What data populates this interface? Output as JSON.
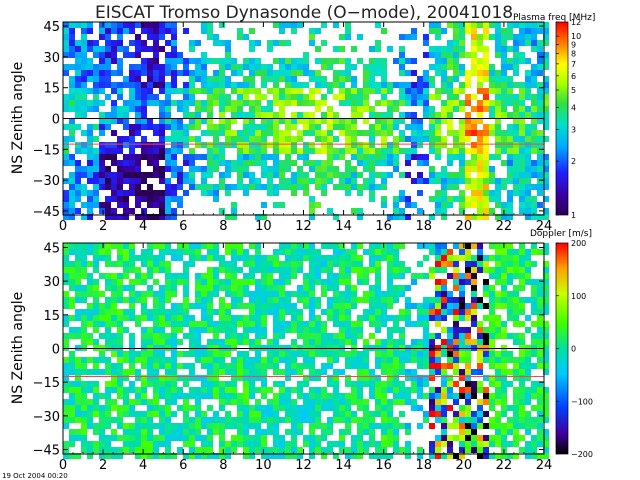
{
  "title": "EISCAT Tromso Dynasonde (O−mode),  20041018",
  "timestamp": "19 Oct 2004 00:20",
  "colors": {
    "frame": "#000000",
    "reference_line": "#ff4444",
    "zero_line": "#000000",
    "background": "#ffffff"
  },
  "chart_data": [
    {
      "type": "heatmap",
      "title": "",
      "xlabel": "",
      "ylabel": "NS Zenith angle",
      "xlim": [
        0,
        24
      ],
      "ylim": [
        -47,
        47
      ],
      "x_ticks": [
        "0",
        "2",
        "4",
        "6",
        "8",
        "10",
        "12",
        "14",
        "16",
        "18",
        "20",
        "22",
        "24"
      ],
      "y_ticks": [
        "45",
        "30",
        "15",
        "0",
        "−15",
        "−30",
        "−45"
      ],
      "x_tick_values": [
        0,
        2,
        4,
        6,
        8,
        10,
        12,
        14,
        16,
        18,
        20,
        22,
        24
      ],
      "y_tick_values": [
        45,
        30,
        15,
        0,
        -15,
        -30,
        -45
      ],
      "reference_lines": [
        {
          "y": 0,
          "color": "#000000"
        },
        {
          "y": -12.5,
          "color": "#ff4444"
        }
      ],
      "colorbar": {
        "label": "Plasma freq [MHz]",
        "scale": "log",
        "range": [
          1,
          12
        ],
        "tick_labels": [
          "12",
          "10",
          "9",
          "8",
          "7",
          "6",
          "5",
          "4",
          "3",
          "2",
          "1"
        ],
        "tick_values": [
          12,
          10,
          9,
          8,
          7,
          6,
          5,
          4,
          3,
          2,
          1
        ]
      },
      "values_description": "scattered echoes; high plasma frequencies near 20 h and 13 h around zero zenith angle",
      "x_bins_hours": [
        0,
        1,
        2,
        3,
        4,
        5,
        6,
        7,
        8,
        9,
        10,
        11,
        12,
        13,
        14,
        15,
        16,
        17,
        18,
        19,
        20,
        21,
        22,
        23
      ],
      "typical_value": [
        2.8,
        2.6,
        2.2,
        2.0,
        1.8,
        2.4,
        3.3,
        3.6,
        3.8,
        3.9,
        4.0,
        4.1,
        4.3,
        4.3,
        4.0,
        3.8,
        3.4,
        2.3,
        3.8,
        4.3,
        7.5,
        4.0,
        3.5,
        3.4
      ]
    },
    {
      "type": "heatmap",
      "title": "",
      "xlabel": "",
      "ylabel": "NS Zenith angle",
      "xlim": [
        0,
        24
      ],
      "ylim": [
        -47,
        47
      ],
      "x_ticks": [
        "0",
        "2",
        "4",
        "6",
        "8",
        "10",
        "12",
        "14",
        "16",
        "18",
        "20",
        "22",
        "24"
      ],
      "y_ticks": [
        "45",
        "30",
        "15",
        "0",
        "−15",
        "−30",
        "−45"
      ],
      "x_tick_values": [
        0,
        2,
        4,
        6,
        8,
        10,
        12,
        14,
        16,
        18,
        20,
        22,
        24
      ],
      "y_tick_values": [
        45,
        30,
        15,
        0,
        -15,
        -30,
        -45
      ],
      "reference_lines": [
        {
          "y": 0,
          "color": "#000000"
        },
        {
          "y": -12.5,
          "color": "#ff4444"
        }
      ],
      "colorbar": {
        "label": "Doppler [m/s]",
        "scale": "linear",
        "range": [
          -200,
          200
        ],
        "tick_labels": [
          "200",
          "100",
          "0",
          "−100",
          "−200"
        ],
        "tick_values": [
          200,
          100,
          0,
          -100,
          -200
        ]
      },
      "values_description": "mostly near-zero Doppler (green/cyan) with strong mixed positive/negative values between 18 and 21 h",
      "x_bins_hours": [
        0,
        1,
        2,
        3,
        4,
        5,
        6,
        7,
        8,
        9,
        10,
        11,
        12,
        13,
        14,
        15,
        16,
        17,
        18,
        19,
        20,
        21,
        22,
        23
      ],
      "typical_value": [
        5,
        10,
        15,
        10,
        5,
        0,
        0,
        5,
        10,
        5,
        0,
        -5,
        -5,
        0,
        5,
        10,
        0,
        -20,
        40,
        0,
        -40,
        30,
        20,
        10
      ]
    }
  ]
}
